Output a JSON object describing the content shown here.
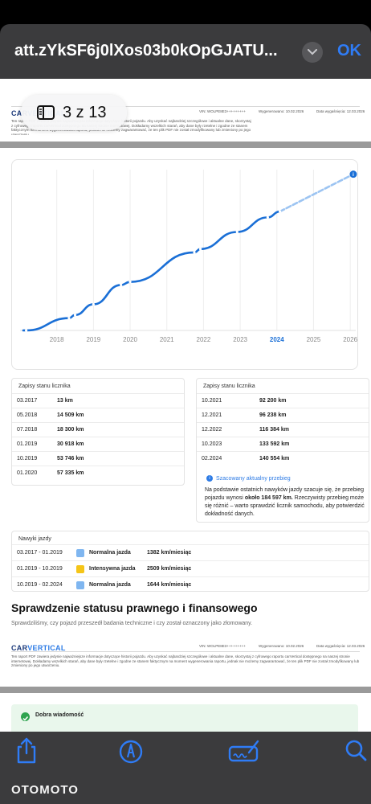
{
  "header": {
    "title": "att.zYkSF6j0lXos03b0kOpGJATU...",
    "ok_label": "OK"
  },
  "page_indicator": {
    "text": "3 z 13"
  },
  "report_header": {
    "brand_part1": "CAR",
    "brand_part2": "VERTICAL",
    "disclaimer": "Ten raport PDF zawiera jedynie najważniejsze informacje dotyczące historii pojazdu. Aby uzyskać najbardziej szczegółowe i aktualne dane, skorzystaj z cyfrowego raportu carVertical dostępnego na naszej stronie internetowej. Dokładamy wszelkich starań, aby dane były rzetelne i zgodne ze stanem faktycznym na moment wygenerowania raportu, jednak nie możemy zagwarantować, że ten plik PDF nie został zmodyfikowany lub zmieniony po jego utworzeniu.",
    "vin": "VIN: WOLPE8E3+++++++++",
    "generated": "Wygenerowano: 10.02.2026",
    "expires": "Data wygaśnięcia: 12.03.2026"
  },
  "chart_data": {
    "type": "line",
    "x_ticks": [
      "2018",
      "2019",
      "2020",
      "2021",
      "2022",
      "2023",
      "2024",
      "2025",
      "2026"
    ],
    "highlight_tick": "2024",
    "series": [
      {
        "points": [
          {
            "x": "03.2017",
            "y": 13
          },
          {
            "x": "05.2018",
            "y": 14509
          },
          {
            "x": "07.2018",
            "y": 18300
          },
          {
            "x": "01.2019",
            "y": 30918
          },
          {
            "x": "10.2019",
            "y": 53746
          },
          {
            "x": "01.2020",
            "y": 57335
          },
          {
            "x": "10.2021",
            "y": 92200
          },
          {
            "x": "12.2021",
            "y": 96238
          },
          {
            "x": "12.2022",
            "y": 116384
          },
          {
            "x": "10.2023",
            "y": 133592
          },
          {
            "x": "02.2024",
            "y": 140554
          }
        ]
      }
    ],
    "estimated_point": {
      "x": "02.2026",
      "y": 184597
    },
    "colors": {
      "line": "#1a6fd6",
      "estimate": "#9cc4f2",
      "grid": "#eeeeee"
    },
    "grid": true
  },
  "odometer_left": {
    "title": "Zapisy stanu licznika",
    "rows": [
      {
        "date": "03.2017",
        "km": "13 km"
      },
      {
        "date": "05.2018",
        "km": "14 509 km"
      },
      {
        "date": "07.2018",
        "km": "18 300 km"
      },
      {
        "date": "01.2019",
        "km": "30 918 km"
      },
      {
        "date": "10.2019",
        "km": "53 746 km"
      },
      {
        "date": "01.2020",
        "km": "57 335 km"
      }
    ]
  },
  "odometer_right": {
    "title": "Zapisy stanu licznika",
    "rows": [
      {
        "date": "10.2021",
        "km": "92 200 km"
      },
      {
        "date": "12.2021",
        "km": "96 238 km"
      },
      {
        "date": "12.2022",
        "km": "116 384 km"
      },
      {
        "date": "10.2023",
        "km": "133 592 km"
      },
      {
        "date": "02.2024",
        "km": "140 554 km"
      }
    ],
    "estimate_label": "Szacowany aktualny przebieg",
    "estimate_text": "Na podstawie ostatnich nawyków jazdy szacuje się, że przebieg pojazdu wynosi około 184 597 km. Rzeczywisty przebieg może się różnić – warto sprawdzić licznik samochodu, aby potwierdzić dokładność danych."
  },
  "driving_habits": {
    "title": "Nawyki jazdy",
    "rows": [
      {
        "period": "03.2017 - 01.2019",
        "type": "Normalna jazda",
        "value": "1382 km/miesiąc",
        "color": "#7fb6f0"
      },
      {
        "period": "01.2019 - 10.2019",
        "type": "Intensywna jazda",
        "value": "2509 km/miesiąc",
        "color": "#f5c518"
      },
      {
        "period": "10.2019 - 02.2024",
        "type": "Normalna jazda",
        "value": "1644 km/miesiąc",
        "color": "#7fb6f0"
      }
    ]
  },
  "legal_section": {
    "title": "Sprawdzenie statusu prawnego i finansowego",
    "subtitle": "Sprawdziliśmy, czy pojazd przeszedł badania techniczne i czy został oznaczony jako złomowany."
  },
  "good_news": {
    "label": "Dobra wiadomość"
  },
  "toolbar": {
    "share": "share-icon",
    "markup": "markup-pen-icon",
    "signature": "signature-icon",
    "search": "search-icon"
  },
  "watermark": {
    "text": "OTOMOTO"
  }
}
